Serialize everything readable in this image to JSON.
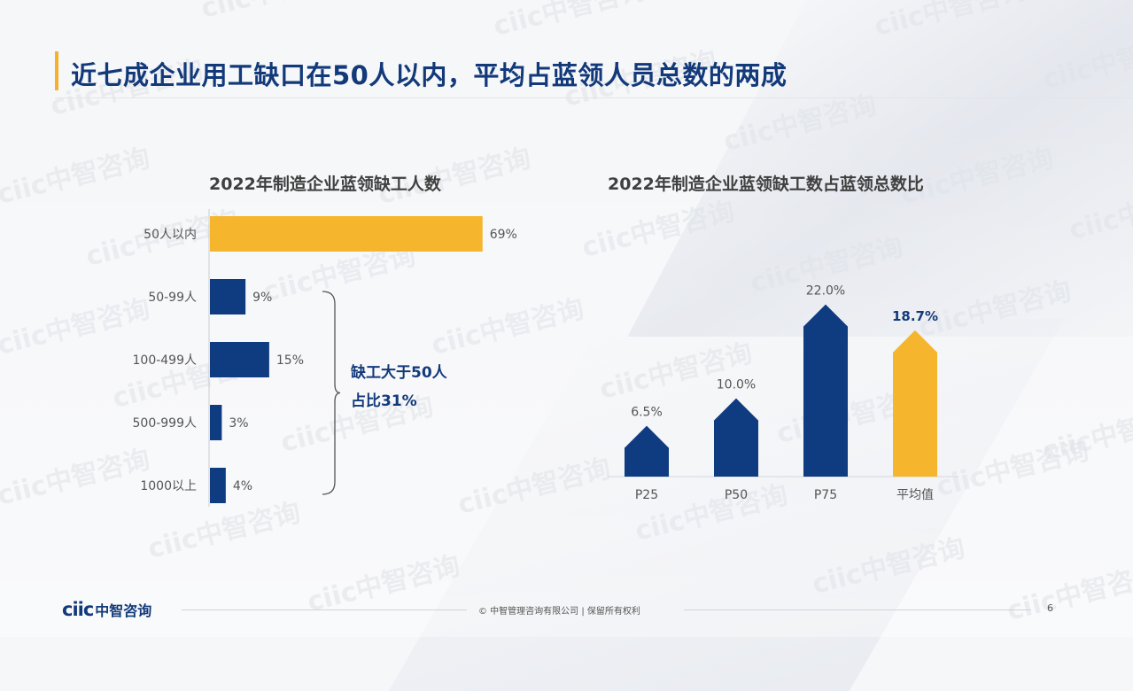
{
  "header": {
    "title": "近七成企业用工缺口在50人以内，平均占蓝领人员总数的两成"
  },
  "chart_data": [
    {
      "type": "bar",
      "orientation": "horizontal",
      "title": "2022年制造企业蓝领缺工人数",
      "categories": [
        "50人以内",
        "50-99人",
        "100-499人",
        "500-999人",
        "1000以上"
      ],
      "values": [
        69,
        9,
        15,
        3,
        4
      ],
      "value_labels": [
        "69%",
        "9%",
        "15%",
        "3%",
        "4%"
      ],
      "unit": "%",
      "xlim": [
        0,
        100
      ],
      "colors": [
        "#f5b52c",
        "#0f3b80",
        "#0f3b80",
        "#0f3b80",
        "#0f3b80"
      ],
      "grid": false,
      "annotation": {
        "lines": [
          "缺工大于50人",
          "占比31%"
        ],
        "covers": [
          "50-99人",
          "100-499人",
          "500-999人",
          "1000以上"
        ]
      }
    },
    {
      "type": "bar",
      "orientation": "vertical",
      "title": "2022年制造企业蓝领缺工数占蓝领总数比",
      "categories": [
        "P25",
        "P50",
        "P75",
        "平均值"
      ],
      "values": [
        6.5,
        10.0,
        22.0,
        18.7
      ],
      "value_labels": [
        "6.5%",
        "10.0%",
        "22.0%",
        "18.7%"
      ],
      "unit": "%",
      "ylim": [
        0,
        24
      ],
      "colors": [
        "#0f3b80",
        "#0f3b80",
        "#0f3b80",
        "#f5b52c"
      ],
      "highlight": "平均值",
      "grid": false
    }
  ],
  "watermark": {
    "text": "ciic中智咨询"
  },
  "footer": {
    "logo_text": "ciic",
    "logo_cn": "中智咨询",
    "copyright": "© 中智管理咨询有限公司 | 保留所有权利",
    "page_number": "6"
  },
  "colors": {
    "navy": "#0f3b80",
    "gold": "#f5b52c",
    "title": "#123a7a"
  }
}
